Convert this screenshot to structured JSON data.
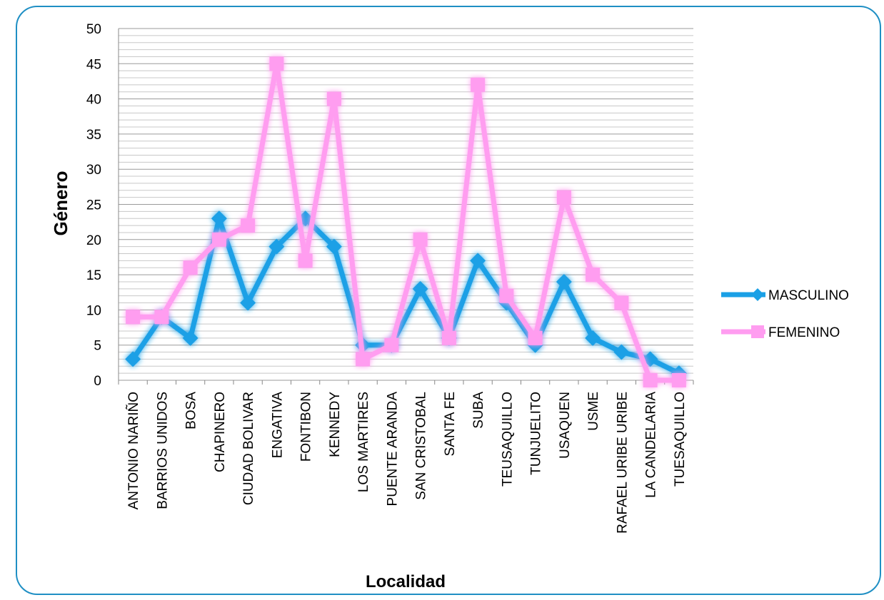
{
  "chart_data": {
    "type": "line",
    "title": "",
    "xlabel": "Localidad",
    "ylabel": "Género",
    "ylim": [
      0,
      50
    ],
    "ytick_step": 5,
    "grid": true,
    "legend_position": "right",
    "categories": [
      "ANTONIO NARIÑO",
      "BARRIOS UNIDOS",
      "BOSA",
      "CHAPINERO",
      "CIUDAD BOLIVAR",
      "ENGATIVA",
      "FONTIBON",
      "KENNEDY",
      "LOS MARTIRES",
      "PUENTE ARANDA",
      "SAN CRISTOBAL",
      "SANTA FE",
      "SUBA",
      "TEUSAQUILLO",
      "TUNJUELITO",
      "USAQUEN",
      "USME",
      "RAFAEL URIBE URIBE",
      "LA CANDELARIA",
      "TUESAQUILLO"
    ],
    "series": [
      {
        "name": "MASCULINO",
        "color": "#1aa0e6",
        "marker": "diamond",
        "values": [
          3,
          9,
          6,
          23,
          11,
          19,
          23,
          19,
          5,
          5,
          13,
          6,
          17,
          11,
          5,
          14,
          6,
          4,
          3,
          1
        ]
      },
      {
        "name": "FEMENINO",
        "color": "#ff9df0",
        "marker": "square",
        "values": [
          9,
          9,
          16,
          20,
          22,
          45,
          17,
          40,
          3,
          5,
          20,
          6,
          42,
          12,
          6,
          26,
          15,
          11,
          0,
          0
        ]
      }
    ]
  }
}
